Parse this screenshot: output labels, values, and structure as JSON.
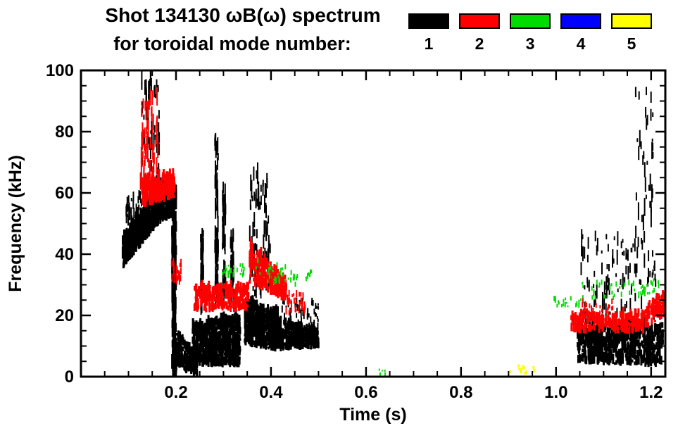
{
  "chart_data": {
    "type": "scatter",
    "title": "Shot 134130 ωB(ω) spectrum",
    "subtitle": "for toroidal mode number:",
    "xlabel": "Time (s)",
    "ylabel": "Frequency (kHz)",
    "xlim": [
      0.0,
      1.23
    ],
    "ylim": [
      0,
      100
    ],
    "xticks": [
      0.2,
      0.4,
      0.6,
      0.8,
      1.0,
      1.2
    ],
    "xtick_labels": [
      "0.2",
      "0.4",
      "0.6",
      "0.8",
      "1.0",
      "1.2"
    ],
    "x_minor_step": 0.05,
    "yticks": [
      0,
      20,
      40,
      60,
      80,
      100
    ],
    "ytick_labels": [
      "0",
      "20",
      "40",
      "60",
      "80",
      "100"
    ],
    "y_minor_step": 5,
    "grid": false,
    "legend_position": "top-right",
    "legend": [
      {
        "label": "1",
        "color": "#000000"
      },
      {
        "label": "2",
        "color": "#ff0000"
      },
      {
        "label": "3",
        "color": "#00dc00"
      },
      {
        "label": "4",
        "color": "#0000ff"
      },
      {
        "label": "5",
        "color": "#ffff00"
      }
    ],
    "series": [
      {
        "name": "toroidal mode n=1",
        "color": "#000000",
        "seed": 101,
        "clusters": [
          {
            "t": [
              0.088,
              0.155
            ],
            "f": [
              35,
              44
            ],
            "f2": [
              48,
              60
            ],
            "n": 450,
            "dash": [
              0.8,
              4
            ],
            "w": 3
          },
          {
            "t": [
              0.15,
              0.192
            ],
            "f": [
              48,
              60
            ],
            "f2": [
              52,
              63
            ],
            "n": 260,
            "dash": [
              0.8,
              4
            ],
            "w": 3
          },
          {
            "t": [
              0.128,
              0.165
            ],
            "f": [
              60,
              97
            ],
            "n": 60,
            "dash": [
              1,
              6
            ],
            "w": 2
          },
          {
            "t": [
              0.095,
              0.128
            ],
            "f": [
              44,
              58
            ],
            "n": 55,
            "dash": [
              1,
              4
            ],
            "w": 2
          },
          {
            "t": [
              0.192,
              0.2
            ],
            "f": [
              0,
              58
            ],
            "n": 120,
            "dash": [
              2,
              7
            ],
            "w": 3
          },
          {
            "t": [
              0.2,
              0.245
            ],
            "f": [
              2,
              14
            ],
            "f2": [
              0,
              6
            ],
            "n": 180,
            "dash": [
              0.8,
              3
            ],
            "w": 3
          },
          {
            "t": [
              0.235,
              0.335
            ],
            "f": [
              3,
              16
            ],
            "f2": [
              3,
              19
            ],
            "n": 650,
            "dash": [
              0.8,
              3.5
            ],
            "w": 3
          },
          {
            "t": [
              0.252,
              0.258
            ],
            "f": [
              20,
              46
            ],
            "n": 40,
            "dash": [
              1.5,
              6
            ],
            "w": 2
          },
          {
            "t": [
              0.282,
              0.289
            ],
            "f": [
              22,
              77
            ],
            "n": 60,
            "dash": [
              1.5,
              7
            ],
            "w": 2
          },
          {
            "t": [
              0.298,
              0.305
            ],
            "f": [
              24,
              60
            ],
            "n": 50,
            "dash": [
              1.5,
              6
            ],
            "w": 2
          },
          {
            "t": [
              0.315,
              0.322
            ],
            "f": [
              20,
              48
            ],
            "n": 36,
            "dash": [
              1.5,
              5
            ],
            "w": 2
          },
          {
            "t": [
              0.345,
              0.415
            ],
            "f": [
              10,
              25
            ],
            "f2": [
              8,
              20
            ],
            "n": 480,
            "dash": [
              0.8,
              3.5
            ],
            "w": 3
          },
          {
            "t": [
              0.355,
              0.4
            ],
            "f": [
              25,
              65
            ],
            "n": 90,
            "dash": [
              1.5,
              6
            ],
            "w": 2
          },
          {
            "t": [
              0.415,
              0.5
            ],
            "f": [
              8,
              18
            ],
            "f2": [
              9,
              14
            ],
            "n": 300,
            "dash": [
              0.8,
              3
            ],
            "w": 3
          },
          {
            "t": [
              0.42,
              0.5
            ],
            "f": [
              15,
              24
            ],
            "n": 60,
            "dash": [
              0.8,
              2.5
            ],
            "w": 2
          },
          {
            "t": [
              1.045,
              1.225
            ],
            "f": [
              4,
              15
            ],
            "f2": [
              3,
              17
            ],
            "n": 650,
            "dash": [
              0.8,
              3.5
            ],
            "w": 3
          },
          {
            "t": [
              1.05,
              1.21
            ],
            "f": [
              17,
              45
            ],
            "n": 110,
            "dash": [
              1,
              5
            ],
            "w": 2
          },
          {
            "t": [
              1.165,
              1.205
            ],
            "f": [
              40,
              92
            ],
            "n": 40,
            "dash": [
              1,
              6
            ],
            "w": 2
          }
        ]
      },
      {
        "name": "toroidal mode n=2",
        "color": "#ff0000",
        "seed": 202,
        "clusters": [
          {
            "t": [
              0.125,
              0.162
            ],
            "f": [
              58,
              89
            ],
            "n": 70,
            "dash": [
              1.5,
              6
            ],
            "w": 2
          },
          {
            "t": [
              0.128,
              0.198
            ],
            "f": [
              55,
              63
            ],
            "f2": [
              58,
              66
            ],
            "n": 220,
            "dash": [
              0.8,
              3.5
            ],
            "w": 3
          },
          {
            "t": [
              0.19,
              0.212
            ],
            "f": [
              30,
              37
            ],
            "n": 28,
            "dash": [
              0.8,
              3
            ],
            "w": 2
          },
          {
            "t": [
              0.238,
              0.352
            ],
            "f": [
              21,
              29
            ],
            "n": 280,
            "dash": [
              0.8,
              3
            ],
            "w": 3
          },
          {
            "t": [
              0.355,
              0.432
            ],
            "f": [
              30,
              43
            ],
            "f2": [
              24,
              30
            ],
            "n": 240,
            "dash": [
              0.8,
              3.5
            ],
            "w": 3
          },
          {
            "t": [
              0.432,
              0.472
            ],
            "f": [
              20,
              27
            ],
            "n": 40,
            "dash": [
              0.8,
              2.5
            ],
            "w": 2
          },
          {
            "t": [
              1.032,
              1.185
            ],
            "f": [
              14,
              20
            ],
            "n": 220,
            "dash": [
              0.8,
              3
            ],
            "w": 3
          },
          {
            "t": [
              1.185,
              1.228
            ],
            "f": [
              15,
              21
            ],
            "f2": [
              19,
              27
            ],
            "n": 80,
            "dash": [
              0.8,
              3
            ],
            "w": 3
          },
          {
            "t": [
              1.05,
              1.12
            ],
            "f": [
              20,
              24
            ],
            "n": 22,
            "dash": [
              0.8,
              2
            ],
            "w": 2
          }
        ]
      },
      {
        "name": "toroidal mode n=3",
        "color": "#00dc00",
        "seed": 303,
        "clusters": [
          {
            "t": [
              0.295,
              0.345
            ],
            "f": [
              32,
              36
            ],
            "n": 24,
            "dash": [
              0.6,
              2
            ],
            "w": 2
          },
          {
            "t": [
              0.368,
              0.462
            ],
            "f": [
              31,
              38
            ],
            "f2": [
              29,
              34
            ],
            "n": 40,
            "dash": [
              0.6,
              2
            ],
            "w": 2
          },
          {
            "t": [
              0.468,
              0.487
            ],
            "f": [
              31,
              34
            ],
            "n": 8,
            "dash": [
              0.6,
              1.5
            ],
            "w": 2
          },
          {
            "t": [
              0.625,
              0.648
            ],
            "f": [
              0,
              2
            ],
            "n": 6,
            "dash": [
              0.5,
              1.2
            ],
            "w": 2
          },
          {
            "t": [
              0.995,
              1.055
            ],
            "f": [
              22,
              25
            ],
            "n": 20,
            "dash": [
              0.6,
              1.8
            ],
            "w": 2
          },
          {
            "t": [
              1.055,
              1.165
            ],
            "f": [
              25,
              30
            ],
            "n": 30,
            "dash": [
              0.6,
              1.8
            ],
            "w": 2
          },
          {
            "t": [
              1.168,
              1.222
            ],
            "f": [
              24,
              28
            ],
            "f2": [
              27,
              33
            ],
            "n": 24,
            "dash": [
              0.6,
              1.8
            ],
            "w": 2
          }
        ]
      },
      {
        "name": "toroidal mode n=4",
        "color": "#0000ff",
        "seed": 404,
        "clusters": []
      },
      {
        "name": "toroidal mode n=5",
        "color": "#ffff00",
        "seed": 505,
        "clusters": [
          {
            "t": [
              0.898,
              0.955
            ],
            "f": [
              0.5,
              3
            ],
            "n": 12,
            "dash": [
              0.6,
              1.5
            ],
            "w": 3
          }
        ]
      }
    ]
  }
}
